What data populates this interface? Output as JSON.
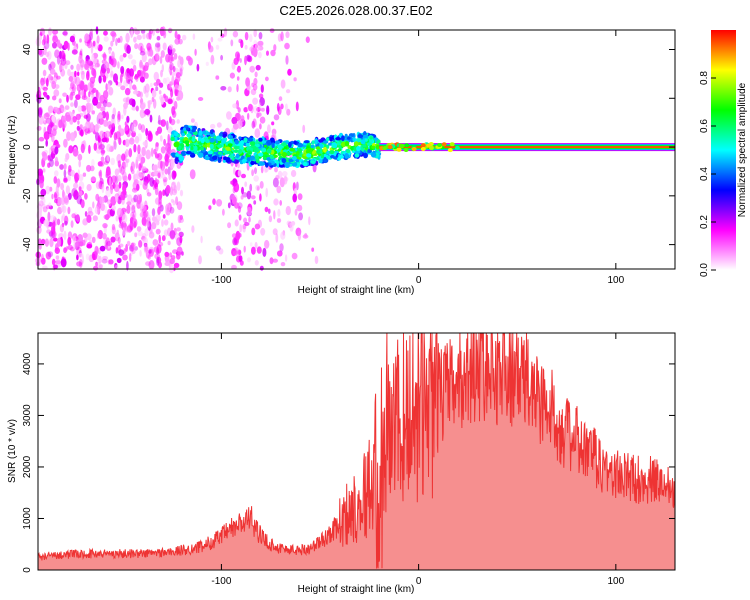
{
  "figure": {
    "title": "C2E5.2026.028.00.37.E02"
  },
  "chart_data": [
    {
      "type": "heatmap",
      "name": "spectrogram",
      "xlabel": "Height of straight line (km)",
      "ylabel": "Frequency (Hz)",
      "xlim": [
        -193,
        130
      ],
      "ylim": [
        -50,
        48
      ],
      "xticks": [
        -100,
        0,
        100
      ],
      "xticklabels": [
        "-100",
        "0",
        "100"
      ],
      "yticks": [
        -40,
        -20,
        0,
        20,
        40
      ],
      "yticklabels": [
        "-40",
        "-20",
        "0",
        "20",
        "40"
      ],
      "colorbar": {
        "label": "Normalized spectral amplitude",
        "range": [
          0,
          1
        ],
        "ticks": [
          0,
          0.2,
          0.4,
          0.6,
          0.8
        ],
        "ticklabels": [
          "0.0",
          "0.2",
          "0.4",
          "0.6",
          "0.8"
        ],
        "colors": [
          "#ffffff",
          "#ff00ff",
          "#0000ff",
          "#00ffff",
          "#00ff00",
          "#ffff00",
          "#ff0000"
        ]
      },
      "features": {
        "noise_band": {
          "x_range": [
            -193,
            -50
          ],
          "amplitude": 0.2
        },
        "noise_gap": {
          "x_range": [
            -120,
            -95
          ]
        },
        "signal_track": [
          {
            "x": -120,
            "y": 3
          },
          {
            "x": -100,
            "y": 0
          },
          {
            "x": -80,
            "y": -2
          },
          {
            "x": -60,
            "y": -3
          },
          {
            "x": -40,
            "y": 0
          },
          {
            "x": -25,
            "y": 1
          },
          {
            "x": -20,
            "y": 0
          },
          {
            "x": 130,
            "y": 0
          }
        ],
        "carrier_line": {
          "frequency": 0,
          "x_start": -20,
          "x_end": 130,
          "amplitude": 0.95
        }
      }
    },
    {
      "type": "line",
      "name": "snr",
      "xlabel": "Height of straight line (km)",
      "ylabel": "SNR (10 * v/v)",
      "xlim": [
        -193,
        130
      ],
      "ylim": [
        0,
        4600
      ],
      "xticks": [
        -100,
        0,
        100
      ],
      "xticklabels": [
        "-100",
        "0",
        "100"
      ],
      "yticks": [
        0,
        1000,
        2000,
        3000,
        4000
      ],
      "yticklabels": [
        "0",
        "1000",
        "2000",
        "3000",
        "4000"
      ],
      "color": "#ee3333",
      "series": [
        {
          "name": "SNR",
          "x": [
            -193,
            -180,
            -160,
            -140,
            -125,
            -110,
            -100,
            -95,
            -90,
            -85,
            -80,
            -75,
            -70,
            -62,
            -55,
            -48,
            -40,
            -35,
            -30,
            -26,
            -23,
            -20,
            -18,
            -15,
            -12,
            -8,
            -3,
            0,
            5,
            10,
            15,
            20,
            25,
            30,
            35,
            40,
            45,
            50,
            55,
            60,
            65,
            70,
            75,
            80,
            85,
            90,
            95,
            100,
            105,
            110,
            115,
            120,
            125,
            130
          ],
          "y": [
            250,
            300,
            320,
            320,
            350,
            450,
            650,
            800,
            900,
            1000,
            650,
            500,
            420,
            380,
            420,
            600,
            900,
            1150,
            1350,
            1550,
            1700,
            1200,
            2100,
            2600,
            2800,
            3000,
            3150,
            3300,
            3350,
            3400,
            3500,
            3650,
            3850,
            4000,
            3950,
            3900,
            3850,
            3800,
            3650,
            3400,
            3150,
            2950,
            2650,
            2500,
            2300,
            2150,
            1950,
            1850,
            1800,
            1780,
            1750,
            1720,
            1680,
            1650
          ]
        }
      ]
    }
  ]
}
